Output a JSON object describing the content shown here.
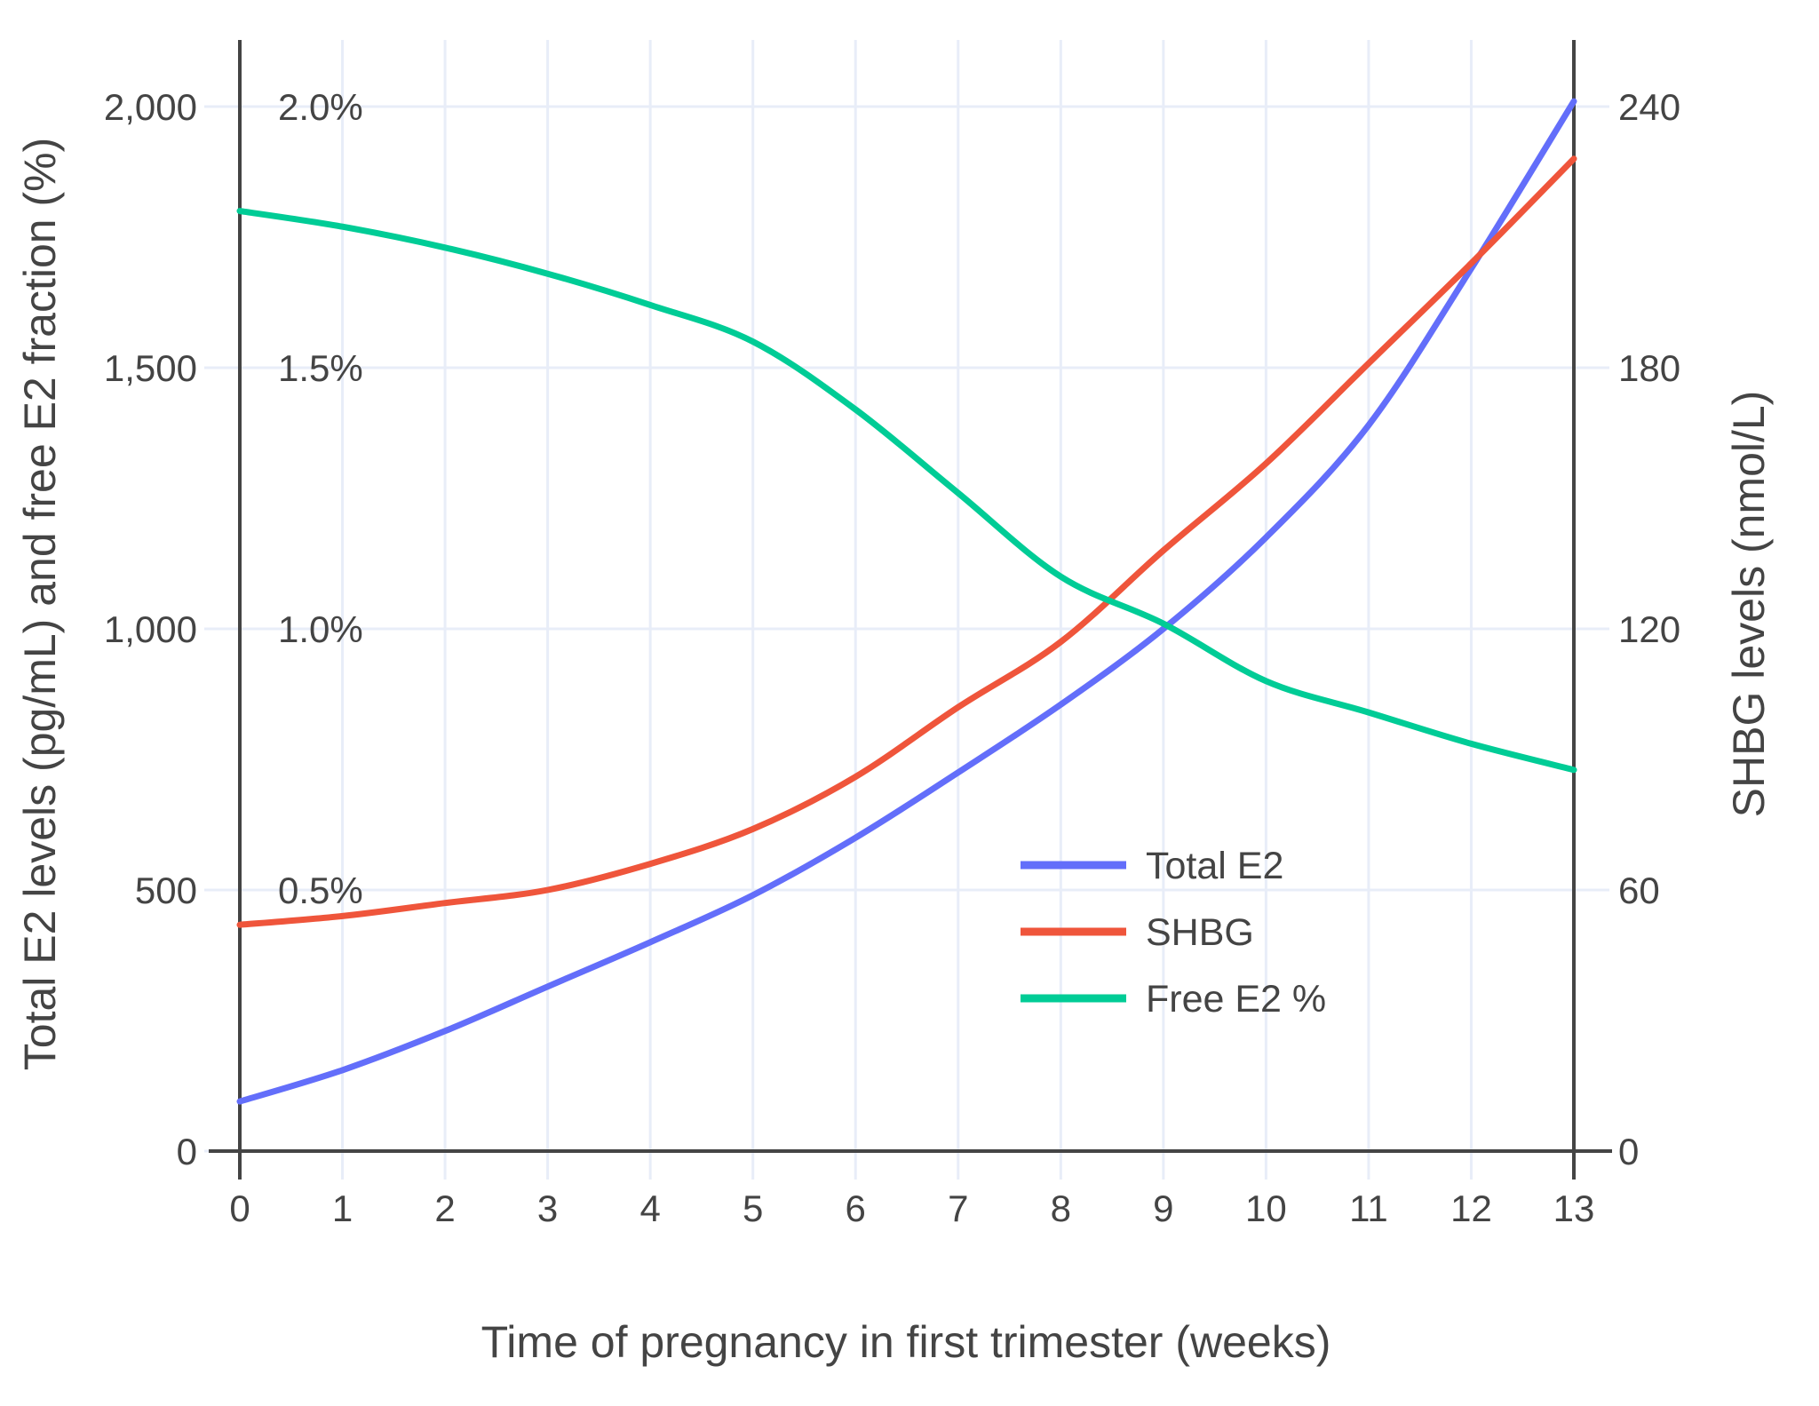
{
  "figure": {
    "x_axis": {
      "title": "Time of pregnancy in first trimester (weeks)",
      "tick_labels": [
        "0",
        "1",
        "2",
        "3",
        "4",
        "5",
        "6",
        "7",
        "8",
        "9",
        "10",
        "11",
        "12",
        "13"
      ]
    },
    "y_axis_left": {
      "title": "Total E2 levels (pg/mL) and free E2 fraction (%)",
      "tick_labels": [
        "0",
        "500",
        "1,000",
        "1,500",
        "2,000"
      ],
      "percent_labels": [
        "0.5%",
        "1.0%",
        "1.5%",
        "2.0%"
      ]
    },
    "y_axis_right": {
      "title": "SHBG levels (nmol/L)",
      "tick_labels": [
        "0",
        "60",
        "120",
        "180",
        "240"
      ]
    },
    "legend": {
      "items": [
        {
          "label": "Total E2",
          "color": "#636efa"
        },
        {
          "label": "SHBG",
          "color": "#ef553b"
        },
        {
          "label": "Free E2 %",
          "color": "#00cc96"
        }
      ]
    },
    "colors": {
      "axis_line": "#444444",
      "grid_line": "#e8edf8",
      "text": "#444444",
      "background": "#ffffff"
    }
  },
  "chart_data": {
    "type": "line",
    "title": "",
    "xlabel": "Time of pregnancy in first trimester (weeks)",
    "x": [
      0,
      1,
      2,
      3,
      4,
      5,
      6,
      7,
      8,
      9,
      10,
      11,
      12,
      13
    ],
    "series": [
      {
        "name": "Total E2",
        "unit": "pg/mL",
        "axis": "left",
        "color": "#636efa",
        "values": [
          95,
          155,
          230,
          315,
          400,
          490,
          600,
          725,
          855,
          1000,
          1175,
          1390,
          1690,
          2010
        ]
      },
      {
        "name": "SHBG",
        "unit": "nmol/L",
        "axis": "right",
        "color": "#ef553b",
        "values": [
          52,
          54,
          57,
          60,
          66,
          74,
          86,
          102,
          117,
          138,
          158,
          181,
          204,
          228
        ]
      },
      {
        "name": "Free E2 %",
        "unit": "%",
        "axis": "left_percent",
        "color": "#00cc96",
        "values": [
          1.8,
          1.77,
          1.73,
          1.68,
          1.62,
          1.55,
          1.42,
          1.26,
          1.1,
          1.01,
          0.9,
          0.84,
          0.78,
          0.73
        ]
      }
    ],
    "axes": {
      "x": {
        "label": "Time of pregnancy in first trimester (weeks)",
        "range": [
          0,
          13
        ],
        "ticks": [
          0,
          1,
          2,
          3,
          4,
          5,
          6,
          7,
          8,
          9,
          10,
          11,
          12,
          13
        ]
      },
      "left": {
        "label": "Total E2 levels (pg/mL)",
        "range": [
          0,
          2130
        ],
        "ticks": [
          0,
          500,
          1000,
          1500,
          2000
        ]
      },
      "left_percent": {
        "label": "free E2 fraction (%)",
        "range": [
          0,
          2.13
        ],
        "ticks": [
          0.5,
          1.0,
          1.5,
          2.0
        ]
      },
      "right": {
        "label": "SHBG levels (nmol/L)",
        "range": [
          0,
          255.6
        ],
        "ticks": [
          0,
          60,
          120,
          180,
          240
        ]
      }
    },
    "grid": true,
    "legend_position": "inside-right-middle",
    "line_shape": "spline"
  }
}
